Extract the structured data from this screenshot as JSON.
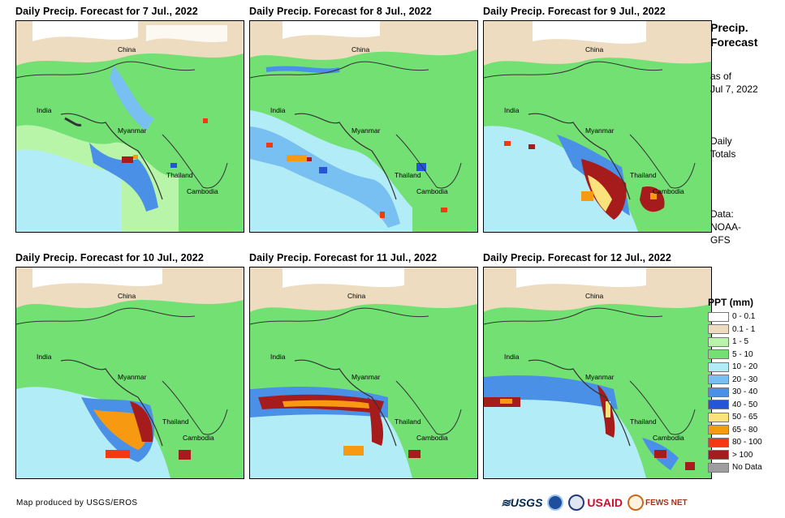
{
  "panels": [
    {
      "title": "Daily Precip. Forecast for 7 Jul., 2022"
    },
    {
      "title": "Daily Precip. Forecast for 8 Jul., 2022"
    },
    {
      "title": "Daily Precip. Forecast for 9 Jul., 2022"
    },
    {
      "title": "Daily Precip. Forecast for 10 Jul., 2022"
    },
    {
      "title": "Daily Precip. Forecast for 11 Jul., 2022"
    },
    {
      "title": "Daily Precip. Forecast for 12 Jul., 2022"
    }
  ],
  "map_labels": {
    "china": "China",
    "india": "India",
    "myanmar": "Myanmar",
    "thailand": "Thailand",
    "cambodia": "Cambodia"
  },
  "sidebar": {
    "title_line1": "Precip.",
    "title_line2": "Forecast",
    "asof_line1": "as of",
    "asof_line2": "Jul 7, 2022",
    "totals_line1": "Daily",
    "totals_line2": "Totals",
    "data_line1": "Data:",
    "data_line2": "NOAA-",
    "data_line3": "GFS"
  },
  "legend": {
    "title": "PPT (mm)",
    "items": [
      {
        "label": "0 - 0.1",
        "color": "#ffffff"
      },
      {
        "label": "0.1 - 1",
        "color": "#eddcbf"
      },
      {
        "label": "1 - 5",
        "color": "#b9f5a8"
      },
      {
        "label": "5 - 10",
        "color": "#73e073"
      },
      {
        "label": "10 - 20",
        "color": "#b2ecf7"
      },
      {
        "label": "20 - 30",
        "color": "#78bff2"
      },
      {
        "label": "30 - 40",
        "color": "#4a90e6"
      },
      {
        "label": "40 - 50",
        "color": "#2455d6"
      },
      {
        "label": "50 - 65",
        "color": "#fbe27a"
      },
      {
        "label": "65 - 80",
        "color": "#f79a12"
      },
      {
        "label": "80 - 100",
        "color": "#f2390f"
      },
      {
        "label": "> 100",
        "color": "#a61c1c"
      },
      {
        "label": "No Data",
        "color": "#9e9e9e"
      }
    ]
  },
  "footer": {
    "credit": "Map produced by USGS/EROS"
  },
  "logos": {
    "usgs": "≋USGS",
    "usaid": "USAID",
    "fews": "FEWS NET"
  }
}
